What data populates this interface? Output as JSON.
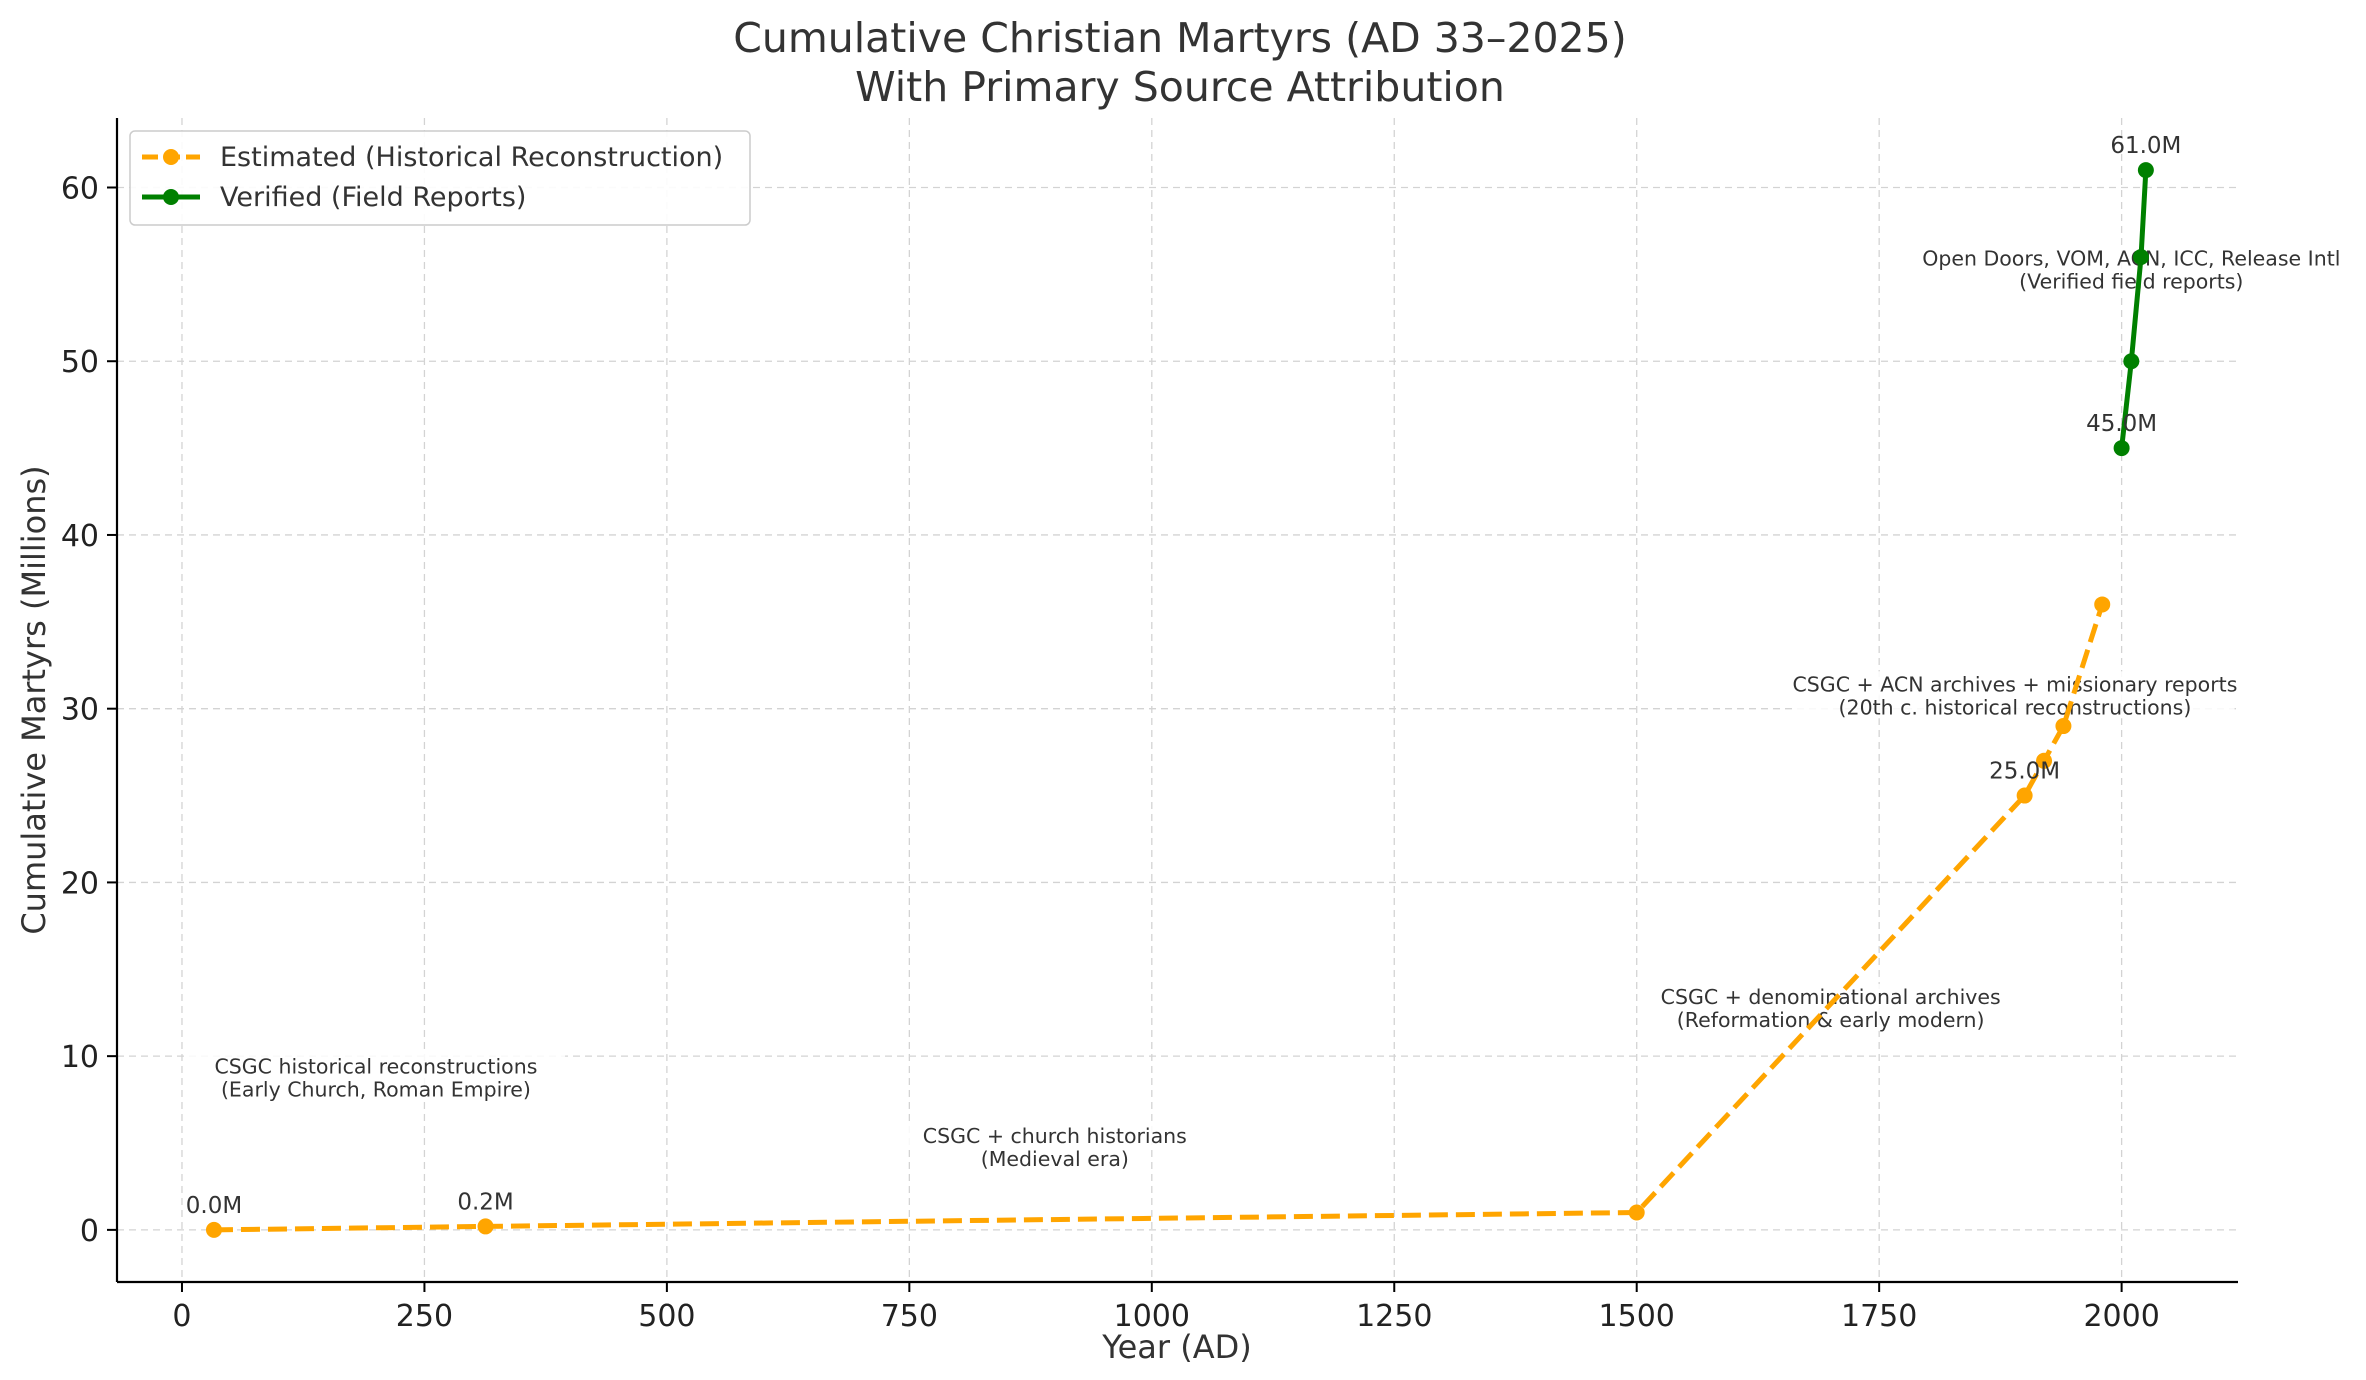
{
  "chart_data": {
    "type": "line",
    "title": "Cumulative Christian Martyrs (AD 33–2025)",
    "subtitle": "With Primary Source Attribution",
    "xlabel": "Year (AD)",
    "ylabel": "Cumulative Martyrs (Millions)",
    "xlim": [
      -67,
      2120
    ],
    "ylim": [
      -3,
      64
    ],
    "x_ticks": [
      0,
      250,
      500,
      750,
      1000,
      1250,
      1500,
      1750,
      2000
    ],
    "y_ticks": [
      0,
      10,
      20,
      30,
      40,
      50,
      60
    ],
    "grid": true,
    "legend_position": "top-left",
    "series": [
      {
        "name": "Estimated (Historical Reconstruction)",
        "color": "#ffa500",
        "style": "dashed",
        "x": [
          33,
          313,
          1500,
          1900,
          1920,
          1940,
          1980
        ],
        "y": [
          0.0,
          0.2,
          1.0,
          25.0,
          27.0,
          29.0,
          36.0
        ]
      },
      {
        "name": "Verified (Field Reports)",
        "color": "#008000",
        "style": "solid",
        "x": [
          2000,
          2010,
          2020,
          2025
        ],
        "y": [
          45.0,
          50.0,
          56.0,
          61.0
        ]
      }
    ],
    "point_labels": [
      {
        "x": 33,
        "y": 0.0,
        "text": "0.0M"
      },
      {
        "x": 313,
        "y": 0.2,
        "text": "0.2M"
      },
      {
        "x": 1900,
        "y": 25.0,
        "text": "25.0M"
      },
      {
        "x": 2000,
        "y": 45.0,
        "text": "45.0M"
      },
      {
        "x": 2025,
        "y": 61.0,
        "text": "61.0M"
      }
    ],
    "annotations": [
      {
        "x": 200,
        "y": 9.0,
        "lines": [
          "CSGC historical reconstructions",
          "(Early Church, Roman Empire)"
        ]
      },
      {
        "x": 900,
        "y": 5.0,
        "lines": [
          "CSGC + church historians",
          "(Medieval era)"
        ]
      },
      {
        "x": 1700,
        "y": 13.0,
        "lines": [
          "CSGC + denominational archives",
          "(Reformation & early modern)"
        ]
      },
      {
        "x": 1890,
        "y": 31.0,
        "lines": [
          "CSGC + ACN archives + missionary reports",
          "(20th c. historical reconstructions)"
        ]
      },
      {
        "x": 2010,
        "y": 55.5,
        "lines": [
          "Open Doors, VOM, ACN, ICC, Release Intl",
          "(Verified field reports)"
        ]
      }
    ]
  }
}
